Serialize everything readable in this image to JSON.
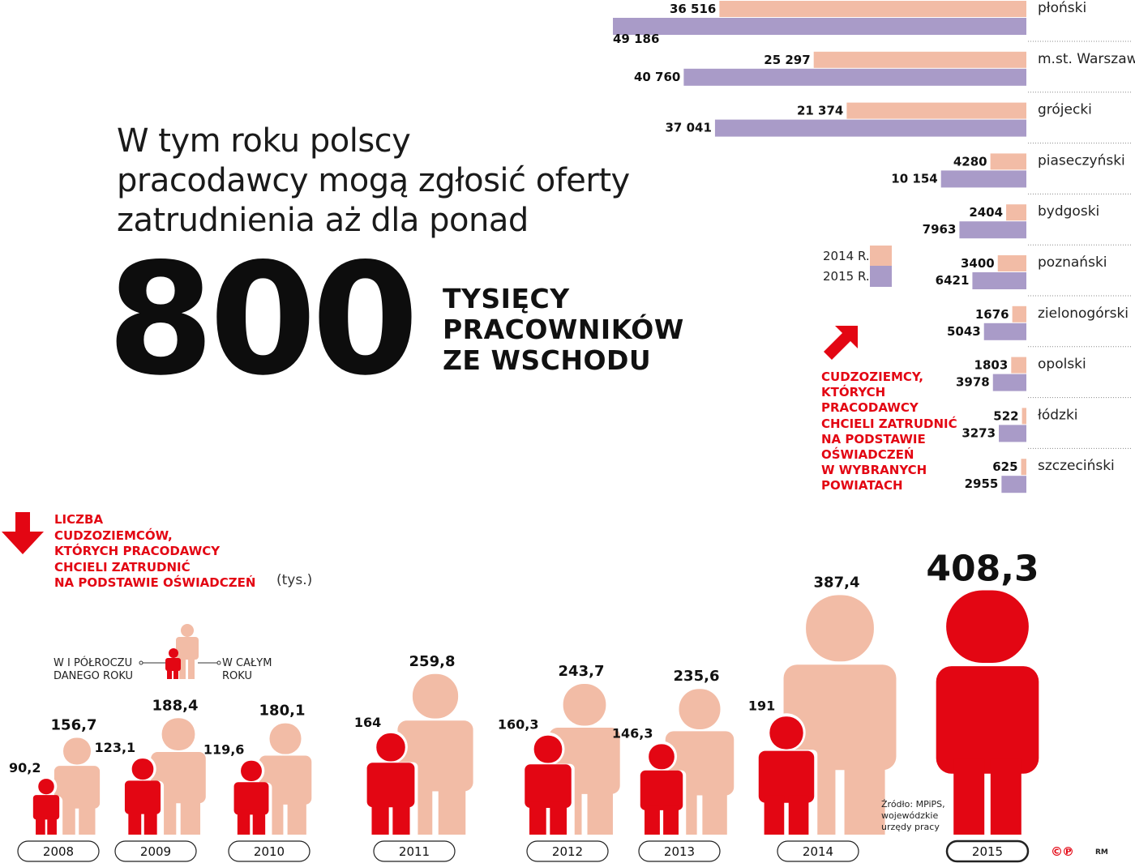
{
  "headline": {
    "lines": [
      "W tym roku polscy",
      "pracodawcy mogą zgłosić oferty",
      "zatrudnienia aż dla ponad"
    ],
    "big_number": "800",
    "big_caption_lines": [
      "TYSIĘCY",
      "PRACOWNIKÓW",
      "ZE WSCHODU"
    ]
  },
  "colors": {
    "red": "#e30613",
    "peach": "#f2bca6",
    "lavender": "#a99bc8",
    "dark": "#111111"
  },
  "figure_chart": {
    "caption_lines": [
      "LICZBA",
      "CUDZOZIEMCÓW,",
      "KTÓRYCH PRACODAWCY",
      "CHCIELI ZATRUDNIĆ",
      "NA PODSTAWIE OŚWIADCZEŃ"
    ],
    "unit": "(tys.)",
    "arrow_icon": "arrow-down-icon",
    "legend_left_lines": [
      "W I  PÓŁROCZU",
      "DANEGO ROKU"
    ],
    "legend_right_lines": [
      "W CAŁYM",
      "ROKU"
    ],
    "source_lines": [
      "Źródło: MPiPS,",
      "wojewódzkie",
      "urzędy pracy"
    ],
    "logo": "©℗",
    "credit": "RM"
  },
  "bar_chart": {
    "legend_2014": "2014 R.",
    "legend_2015": "2015 R.",
    "arrow_icon": "arrow-up-right-icon",
    "caption_lines": [
      "CUDZOZIEMCY,",
      "KTÓRYCH",
      "PRACODAWCY",
      "CHCIELI ZATRUDNIĆ",
      "NA PODSTAWIE",
      "OŚWIADCZEŃ",
      "W WYBRANYCH",
      "POWIATACH"
    ]
  },
  "chart_data": [
    {
      "type": "bar",
      "orientation": "horizontal",
      "categories": [
        "płoński",
        "m.st. Warszawa",
        "grójecki",
        "piaseczyński",
        "bydgoski",
        "poznański",
        "zielonogórski",
        "opolski",
        "łódzki",
        "szczeciński"
      ],
      "series": [
        {
          "name": "2014 R.",
          "values": [
            36516,
            25297,
            21374,
            4280,
            2404,
            3400,
            1676,
            1803,
            522,
            625
          ],
          "labels": [
            "36 516",
            "25 297",
            "21 374",
            "4280",
            "2404",
            "3400",
            "1676",
            "1803",
            "522",
            "625"
          ]
        },
        {
          "name": "2015 R.",
          "values": [
            49186,
            40760,
            37041,
            10154,
            7963,
            6421,
            5043,
            3978,
            3273,
            2955
          ],
          "labels": [
            "49 186",
            "40 760",
            "37 041",
            "10 154",
            "7963",
            "6421",
            "5043",
            "3978",
            "3273",
            "2955"
          ]
        }
      ]
    },
    {
      "type": "bar",
      "categories": [
        "2008",
        "2009",
        "2010",
        "2011",
        "2012",
        "2013",
        "2014",
        "2015"
      ],
      "series": [
        {
          "name": "W I PÓŁROCZU DANEGO ROKU",
          "values": [
            90.2,
            123.1,
            119.6,
            164,
            160.3,
            146.3,
            191,
            null
          ],
          "labels": [
            "90,2",
            "123,1",
            "119,6",
            "164",
            "160,3",
            "146,3",
            "191",
            ""
          ]
        },
        {
          "name": "W CAŁYM ROKU",
          "values": [
            156.7,
            188.4,
            180.1,
            259.8,
            243.7,
            235.6,
            387.4,
            408.3
          ],
          "labels": [
            "156,7",
            "188,4",
            "180,1",
            "259,8",
            "243,7",
            "235,6",
            "387,4",
            "408,3"
          ]
        }
      ]
    }
  ]
}
